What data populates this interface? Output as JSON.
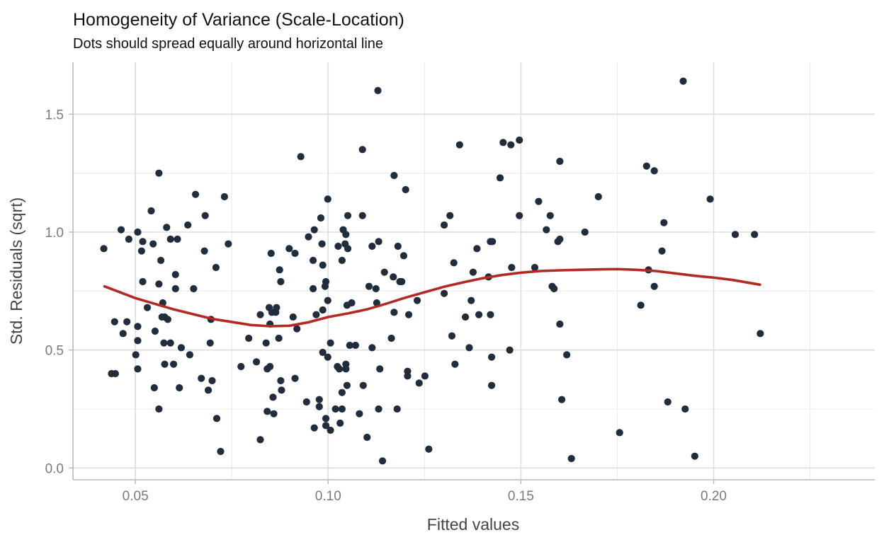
{
  "chart_data": {
    "type": "scatter",
    "title": "Homogeneity of Variance (Scale-Location)",
    "subtitle": "Dots should spread equally around horizontal line",
    "xlabel": "Fitted values",
    "ylabel": "Std. Residuals (sqrt)",
    "xlim": [
      0.0338,
      0.2418
    ],
    "ylim": [
      -0.05,
      1.72
    ],
    "x_ticks": [
      0.05,
      0.1,
      0.15,
      0.2
    ],
    "x_tick_labels": [
      "0.05",
      "0.10",
      "0.15",
      "0.20"
    ],
    "y_ticks": [
      0.0,
      0.5,
      1.0,
      1.5
    ],
    "y_tick_labels": [
      "0.0",
      "0.5",
      "1.0",
      "1.5"
    ],
    "grid": true,
    "legend": "none",
    "point_color": "#1f2d3d",
    "line_color": "#b22a22",
    "points": [
      [
        0.0418,
        0.93
      ],
      [
        0.0438,
        0.4
      ],
      [
        0.0448,
        0.4
      ],
      [
        0.0446,
        0.62
      ],
      [
        0.0463,
        1.01
      ],
      [
        0.0468,
        0.57
      ],
      [
        0.0478,
        0.62
      ],
      [
        0.0483,
        0.97
      ],
      [
        0.0501,
        0.48
      ],
      [
        0.0506,
        1.0
      ],
      [
        0.0506,
        0.6
      ],
      [
        0.0506,
        0.54
      ],
      [
        0.0506,
        0.42
      ],
      [
        0.0516,
        0.92
      ],
      [
        0.0519,
        0.96
      ],
      [
        0.0519,
        0.79
      ],
      [
        0.0531,
        0.68
      ],
      [
        0.0541,
        1.09
      ],
      [
        0.0546,
        0.95
      ],
      [
        0.0549,
        0.34
      ],
      [
        0.0551,
        0.58
      ],
      [
        0.0561,
        1.25
      ],
      [
        0.0561,
        0.78
      ],
      [
        0.0561,
        0.25
      ],
      [
        0.0566,
        0.88
      ],
      [
        0.0569,
        0.64
      ],
      [
        0.0571,
        0.7
      ],
      [
        0.0574,
        0.53
      ],
      [
        0.0576,
        0.64
      ],
      [
        0.0576,
        0.44
      ],
      [
        0.0581,
        1.02
      ],
      [
        0.0584,
        0.63
      ],
      [
        0.0591,
        0.97
      ],
      [
        0.0591,
        0.53
      ],
      [
        0.0599,
        0.44
      ],
      [
        0.0604,
        0.82
      ],
      [
        0.0604,
        0.76
      ],
      [
        0.0609,
        0.97
      ],
      [
        0.0614,
        0.34
      ],
      [
        0.0619,
        0.51
      ],
      [
        0.0636,
        1.03
      ],
      [
        0.0641,
        0.48
      ],
      [
        0.0651,
        0.76
      ],
      [
        0.0656,
        1.16
      ],
      [
        0.0671,
        0.38
      ],
      [
        0.0679,
        0.92
      ],
      [
        0.0681,
        1.07
      ],
      [
        0.0689,
        0.33
      ],
      [
        0.0694,
        0.53
      ],
      [
        0.0696,
        0.63
      ],
      [
        0.0699,
        0.37
      ],
      [
        0.0709,
        0.85
      ],
      [
        0.0711,
        0.21
      ],
      [
        0.0721,
        0.07
      ],
      [
        0.0731,
        1.15
      ],
      [
        0.0741,
        0.95
      ],
      [
        0.0774,
        0.43
      ],
      [
        0.0794,
        0.55
      ],
      [
        0.0814,
        0.45
      ],
      [
        0.0824,
        0.12
      ],
      [
        0.0824,
        0.65
      ],
      [
        0.0839,
        0.53
      ],
      [
        0.0842,
        0.42
      ],
      [
        0.0842,
        0.24
      ],
      [
        0.0847,
        0.68
      ],
      [
        0.0849,
        0.61
      ],
      [
        0.0849,
        0.43
      ],
      [
        0.0852,
        0.91
      ],
      [
        0.0854,
        0.66
      ],
      [
        0.0857,
        0.3
      ],
      [
        0.0859,
        0.23
      ],
      [
        0.0864,
        0.66
      ],
      [
        0.0866,
        0.68
      ],
      [
        0.0872,
        0.55
      ],
      [
        0.0874,
        0.84
      ],
      [
        0.0877,
        0.79
      ],
      [
        0.0877,
        0.37
      ],
      [
        0.0879,
        0.33
      ],
      [
        0.0899,
        0.93
      ],
      [
        0.0909,
        0.64
      ],
      [
        0.0914,
        0.91
      ],
      [
        0.0914,
        0.38
      ],
      [
        0.0919,
        0.59
      ],
      [
        0.0929,
        1.32
      ],
      [
        0.0944,
        0.28
      ],
      [
        0.0949,
        0.98
      ],
      [
        0.0961,
        0.76
      ],
      [
        0.0964,
        1.01
      ],
      [
        0.0961,
        0.88
      ],
      [
        0.0964,
        0.17
      ],
      [
        0.0969,
        0.65
      ],
      [
        0.0977,
        0.29
      ],
      [
        0.0977,
        0.26
      ],
      [
        0.0981,
        1.06
      ],
      [
        0.0984,
        0.95
      ],
      [
        0.0986,
        0.86
      ],
      [
        0.0986,
        0.67
      ],
      [
        0.0986,
        0.49
      ],
      [
        0.0992,
        0.77
      ],
      [
        0.0994,
        0.79
      ],
      [
        0.0994,
        0.18
      ],
      [
        0.0994,
        0.21
      ],
      [
        0.0999,
        1.14
      ],
      [
        0.0999,
        0.71
      ],
      [
        0.0999,
        0.47
      ],
      [
        0.1006,
        0.53
      ],
      [
        0.1006,
        0.16
      ],
      [
        0.1019,
        0.25
      ],
      [
        0.1024,
        0.43
      ],
      [
        0.1026,
        0.94
      ],
      [
        0.1029,
        0.42
      ],
      [
        0.1031,
        0.19
      ],
      [
        0.1036,
        0.88
      ],
      [
        0.1036,
        0.25
      ],
      [
        0.1036,
        0.32
      ],
      [
        0.1039,
        1.01
      ],
      [
        0.1044,
        0.95
      ],
      [
        0.1046,
        0.99
      ],
      [
        0.1046,
        0.44
      ],
      [
        0.1046,
        0.42
      ],
      [
        0.1049,
        0.35
      ],
      [
        0.1049,
        0.69
      ],
      [
        0.1051,
        0.93
      ],
      [
        0.1051,
        1.07
      ],
      [
        0.1056,
        0.52
      ],
      [
        0.1061,
        0.7
      ],
      [
        0.1071,
        0.52
      ],
      [
        0.1081,
        0.23
      ],
      [
        0.1089,
        1.35
      ],
      [
        0.1089,
        1.07
      ],
      [
        0.1091,
        0.35
      ],
      [
        0.1101,
        0.13
      ],
      [
        0.1106,
        0.77
      ],
      [
        0.1114,
        0.94
      ],
      [
        0.1114,
        0.51
      ],
      [
        0.1124,
        0.76
      ],
      [
        0.1126,
        0.7
      ],
      [
        0.1129,
        1.6
      ],
      [
        0.1131,
        0.25
      ],
      [
        0.1131,
        0.96
      ],
      [
        0.1134,
        0.42
      ],
      [
        0.1141,
        0.03
      ],
      [
        0.1146,
        0.83
      ],
      [
        0.1164,
        0.55
      ],
      [
        0.1169,
        0.81
      ],
      [
        0.1171,
        1.24
      ],
      [
        0.1171,
        0.66
      ],
      [
        0.1179,
        0.25
      ],
      [
        0.1181,
        0.94
      ],
      [
        0.1186,
        0.79
      ],
      [
        0.1191,
        0.79
      ],
      [
        0.1196,
        0.9
      ],
      [
        0.1201,
        1.18
      ],
      [
        0.1206,
        0.41
      ],
      [
        0.1206,
        0.39
      ],
      [
        0.1209,
        0.65
      ],
      [
        0.1231,
        0.71
      ],
      [
        0.1236,
        0.36
      ],
      [
        0.1251,
        0.39
      ],
      [
        0.1261,
        0.08
      ],
      [
        0.1301,
        0.74
      ],
      [
        0.1301,
        1.03
      ],
      [
        0.1316,
        1.07
      ],
      [
        0.1321,
        0.56
      ],
      [
        0.1326,
        0.87
      ],
      [
        0.1329,
        0.44
      ],
      [
        0.1341,
        1.37
      ],
      [
        0.1356,
        0.64
      ],
      [
        0.1366,
        0.51
      ],
      [
        0.1371,
        0.71
      ],
      [
        0.1376,
        0.83
      ],
      [
        0.1386,
        0.93
      ],
      [
        0.1391,
        0.65
      ],
      [
        0.1416,
        0.81
      ],
      [
        0.1421,
        0.96
      ],
      [
        0.1421,
        0.65
      ],
      [
        0.1424,
        0.35
      ],
      [
        0.1424,
        0.47
      ],
      [
        0.1426,
        0.96
      ],
      [
        0.1446,
        1.23
      ],
      [
        0.1454,
        1.38
      ],
      [
        0.1471,
        0.5
      ],
      [
        0.1474,
        1.37
      ],
      [
        0.1476,
        0.85
      ],
      [
        0.1496,
        1.39
      ],
      [
        0.1496,
        1.07
      ],
      [
        0.1536,
        0.85
      ],
      [
        0.1546,
        1.13
      ],
      [
        0.1566,
        1.01
      ],
      [
        0.1576,
        1.07
      ],
      [
        0.1581,
        0.77
      ],
      [
        0.1586,
        0.76
      ],
      [
        0.1596,
        0.96
      ],
      [
        0.1601,
        0.97
      ],
      [
        0.1601,
        1.3
      ],
      [
        0.1601,
        0.61
      ],
      [
        0.1606,
        0.29
      ],
      [
        0.1619,
        0.48
      ],
      [
        0.1631,
        0.04
      ],
      [
        0.1666,
        1.0
      ],
      [
        0.1701,
        1.15
      ],
      [
        0.1756,
        0.15
      ],
      [
        0.1811,
        0.69
      ],
      [
        0.1826,
        1.28
      ],
      [
        0.1831,
        0.84
      ],
      [
        0.1846,
        1.26
      ],
      [
        0.1846,
        0.77
      ],
      [
        0.1866,
        0.92
      ],
      [
        0.1871,
        1.04
      ],
      [
        0.1881,
        0.28
      ],
      [
        0.1921,
        1.64
      ],
      [
        0.1926,
        0.25
      ],
      [
        0.1951,
        0.05
      ],
      [
        0.1991,
        1.14
      ],
      [
        0.2056,
        0.99
      ],
      [
        0.2106,
        0.99
      ],
      [
        0.2121,
        0.57
      ]
    ],
    "smooth_line": [
      [
        0.042,
        0.77
      ],
      [
        0.05,
        0.72
      ],
      [
        0.06,
        0.672
      ],
      [
        0.07,
        0.632
      ],
      [
        0.08,
        0.606
      ],
      [
        0.085,
        0.601
      ],
      [
        0.09,
        0.603
      ],
      [
        0.095,
        0.618
      ],
      [
        0.1,
        0.64
      ],
      [
        0.105,
        0.655
      ],
      [
        0.11,
        0.672
      ],
      [
        0.115,
        0.696
      ],
      [
        0.12,
        0.722
      ],
      [
        0.125,
        0.745
      ],
      [
        0.13,
        0.768
      ],
      [
        0.135,
        0.787
      ],
      [
        0.14,
        0.804
      ],
      [
        0.145,
        0.818
      ],
      [
        0.15,
        0.828
      ],
      [
        0.155,
        0.835
      ],
      [
        0.16,
        0.838
      ],
      [
        0.165,
        0.84
      ],
      [
        0.17,
        0.842
      ],
      [
        0.175,
        0.843
      ],
      [
        0.18,
        0.84
      ],
      [
        0.185,
        0.835
      ],
      [
        0.19,
        0.825
      ],
      [
        0.195,
        0.815
      ],
      [
        0.2,
        0.807
      ],
      [
        0.205,
        0.797
      ],
      [
        0.212,
        0.777
      ]
    ]
  }
}
